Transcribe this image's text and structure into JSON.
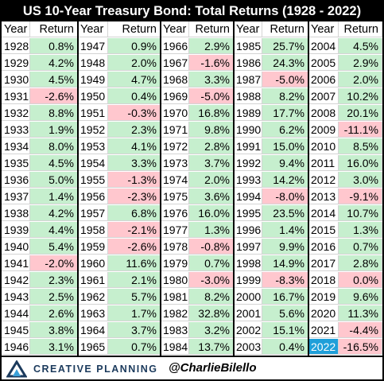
{
  "header": {
    "title": "US 10-Year Treasury Bond: Total Returns (1928 - 2022)"
  },
  "table_headers": {
    "year": "Year",
    "return": "Return"
  },
  "footer": {
    "logo_text": "CREATIVE PLANNING",
    "handle": "@CharlieBilello"
  },
  "colors": {
    "positive": "#c6efce",
    "negative": "#ffc7ce",
    "highlight": "#1f9fd9",
    "header_bg": "#000000"
  },
  "chart_data": {
    "type": "table",
    "title": "US 10-Year Treasury Bond: Total Returns (1928 - 2022)",
    "unit": "%",
    "highlight_year": 2022,
    "columns": [
      [
        [
          "1928",
          "0.8%"
        ],
        [
          "1929",
          "4.2%"
        ],
        [
          "1930",
          "4.5%"
        ],
        [
          "1931",
          "-2.6%"
        ],
        [
          "1932",
          "8.8%"
        ],
        [
          "1933",
          "1.9%"
        ],
        [
          "1934",
          "8.0%"
        ],
        [
          "1935",
          "4.5%"
        ],
        [
          "1936",
          "5.0%"
        ],
        [
          "1937",
          "1.4%"
        ],
        [
          "1938",
          "4.2%"
        ],
        [
          "1939",
          "4.4%"
        ],
        [
          "1940",
          "5.4%"
        ],
        [
          "1941",
          "-2.0%"
        ],
        [
          "1942",
          "2.3%"
        ],
        [
          "1943",
          "2.5%"
        ],
        [
          "1944",
          "2.6%"
        ],
        [
          "1945",
          "3.8%"
        ],
        [
          "1946",
          "3.1%"
        ]
      ],
      [
        [
          "1947",
          "0.9%"
        ],
        [
          "1948",
          "2.0%"
        ],
        [
          "1949",
          "4.7%"
        ],
        [
          "1950",
          "0.4%"
        ],
        [
          "1951",
          "-0.3%"
        ],
        [
          "1952",
          "2.3%"
        ],
        [
          "1953",
          "4.1%"
        ],
        [
          "1954",
          "3.3%"
        ],
        [
          "1955",
          "-1.3%"
        ],
        [
          "1956",
          "-2.3%"
        ],
        [
          "1957",
          "6.8%"
        ],
        [
          "1958",
          "-2.1%"
        ],
        [
          "1959",
          "-2.6%"
        ],
        [
          "1960",
          "11.6%"
        ],
        [
          "1961",
          "2.1%"
        ],
        [
          "1962",
          "5.7%"
        ],
        [
          "1963",
          "1.7%"
        ],
        [
          "1964",
          "3.7%"
        ],
        [
          "1965",
          "0.7%"
        ]
      ],
      [
        [
          "1966",
          "2.9%"
        ],
        [
          "1967",
          "-1.6%"
        ],
        [
          "1968",
          "3.3%"
        ],
        [
          "1969",
          "-5.0%"
        ],
        [
          "1970",
          "16.8%"
        ],
        [
          "1971",
          "9.8%"
        ],
        [
          "1972",
          "2.8%"
        ],
        [
          "1973",
          "3.7%"
        ],
        [
          "1974",
          "2.0%"
        ],
        [
          "1975",
          "3.6%"
        ],
        [
          "1976",
          "16.0%"
        ],
        [
          "1977",
          "1.3%"
        ],
        [
          "1978",
          "-0.8%"
        ],
        [
          "1979",
          "0.7%"
        ],
        [
          "1980",
          "-3.0%"
        ],
        [
          "1981",
          "8.2%"
        ],
        [
          "1982",
          "32.8%"
        ],
        [
          "1983",
          "3.2%"
        ],
        [
          "1984",
          "13.7%"
        ]
      ],
      [
        [
          "1985",
          "25.7%"
        ],
        [
          "1986",
          "24.3%"
        ],
        [
          "1987",
          "-5.0%"
        ],
        [
          "1988",
          "8.2%"
        ],
        [
          "1989",
          "17.7%"
        ],
        [
          "1990",
          "6.2%"
        ],
        [
          "1991",
          "15.0%"
        ],
        [
          "1992",
          "9.4%"
        ],
        [
          "1993",
          "14.2%"
        ],
        [
          "1994",
          "-8.0%"
        ],
        [
          "1995",
          "23.5%"
        ],
        [
          "1996",
          "1.4%"
        ],
        [
          "1997",
          "9.9%"
        ],
        [
          "1998",
          "14.9%"
        ],
        [
          "1999",
          "-8.3%"
        ],
        [
          "2000",
          "16.7%"
        ],
        [
          "2001",
          "5.6%"
        ],
        [
          "2002",
          "15.1%"
        ],
        [
          "2003",
          "0.4%"
        ]
      ],
      [
        [
          "2004",
          "4.5%"
        ],
        [
          "2005",
          "2.9%"
        ],
        [
          "2006",
          "2.0%"
        ],
        [
          "2007",
          "10.2%"
        ],
        [
          "2008",
          "20.1%"
        ],
        [
          "2009",
          "-11.1%"
        ],
        [
          "2010",
          "8.5%"
        ],
        [
          "2011",
          "16.0%"
        ],
        [
          "2012",
          "3.0%"
        ],
        [
          "2013",
          "-9.1%"
        ],
        [
          "2014",
          "10.7%"
        ],
        [
          "2015",
          "1.3%"
        ],
        [
          "2016",
          "0.7%"
        ],
        [
          "2017",
          "2.8%"
        ],
        [
          "2018",
          "0.0%"
        ],
        [
          "2019",
          "9.6%"
        ],
        [
          "2020",
          "11.3%"
        ],
        [
          "2021",
          "-4.4%"
        ],
        [
          "2022",
          "-16.5%"
        ]
      ]
    ]
  }
}
